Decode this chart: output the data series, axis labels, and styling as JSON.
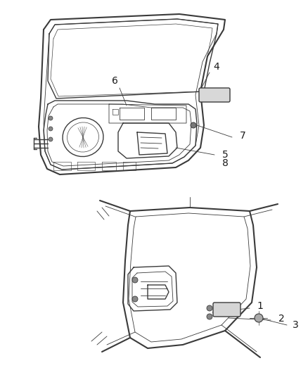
{
  "bg_color": "#ffffff",
  "line_color": "#3a3a3a",
  "label_color": "#1a1a1a",
  "fig_width": 4.38,
  "fig_height": 5.33,
  "dpi": 100,
  "upper_diagram": {
    "ymin": 0.48,
    "ymax": 1.0,
    "xmin": 0.0,
    "xmax": 1.0
  },
  "lower_diagram": {
    "ymin": 0.0,
    "ymax": 0.5,
    "xmin": 0.0,
    "xmax": 1.0
  }
}
